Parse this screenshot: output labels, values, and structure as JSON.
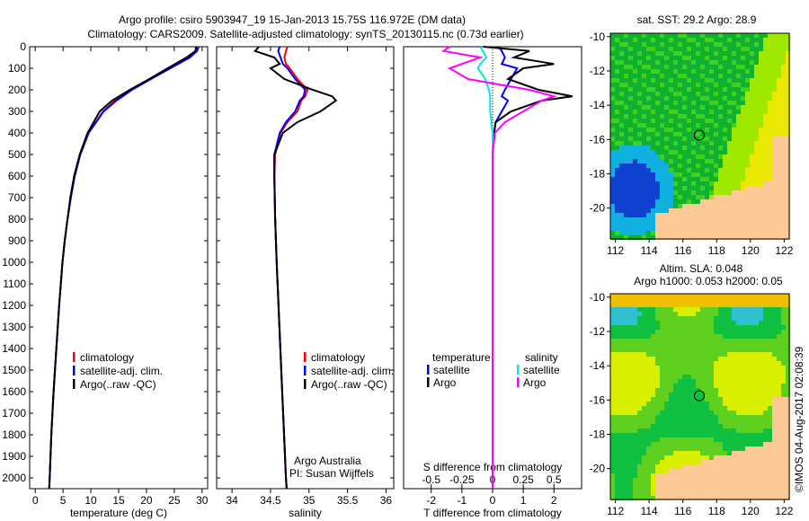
{
  "title": {
    "line1": "Argo profile: csiro 5903947_19 15-Jan-2013 15.75S 116.972E (DM data)",
    "line2": "Climatology: CARS2009. Satellite-adjusted climatology: synTS_20130115.nc (0.73d earlier)"
  },
  "colors": {
    "climatology": "#ff0000",
    "satellite": "#0000ff",
    "argo": "#000000",
    "sal_satellite": "#00e5ee",
    "sal_argo": "#ff00ff",
    "land": "#fcc996"
  },
  "chart_data": [
    {
      "type": "line",
      "name": "temperature",
      "xlabel": "temperature (deg C)",
      "xlim": [
        -1,
        31
      ],
      "ylim": [
        2050,
        0
      ],
      "xticks": [
        "0",
        "5",
        "10",
        "15",
        "20",
        "25",
        "30"
      ],
      "xtick_values": [
        0,
        5,
        10,
        15,
        20,
        25,
        30
      ],
      "yticks": [
        "0",
        "100",
        "200",
        "300",
        "400",
        "500",
        "600",
        "700",
        "800",
        "900",
        "1000",
        "1100",
        "1200",
        "1300",
        "1400",
        "1500",
        "1600",
        "1700",
        "1800",
        "1900",
        "2000"
      ],
      "depth": [
        0,
        20,
        50,
        100,
        150,
        200,
        250,
        300,
        400,
        500,
        600,
        700,
        800,
        900,
        1000,
        1200,
        1400,
        1600,
        1800,
        2000,
        2050
      ],
      "series": [
        {
          "name": "climatology",
          "values": [
            29.2,
            29,
            27.6,
            24.2,
            20.6,
            17.2,
            14.3,
            12.2,
            9.6,
            8.1,
            7.1,
            6.4,
            5.8,
            5.3,
            4.9,
            4.3,
            3.8,
            3.3,
            2.9,
            2.6,
            2.5
          ]
        },
        {
          "name": "satellite-adj. clim.",
          "values": [
            29.4,
            29.1,
            27.8,
            24.3,
            20.8,
            17.4,
            14.6,
            12.3,
            9.6,
            8.1,
            7.1,
            6.4,
            5.8,
            5.3,
            4.9,
            4.3,
            3.8,
            3.3,
            2.9,
            2.6,
            2.5
          ]
        },
        {
          "name": "Argo(..raw -QC)",
          "values": [
            28.9,
            28.8,
            27.2,
            23.8,
            20.5,
            17.0,
            13.8,
            11.6,
            9.4,
            8.0,
            7.0,
            6.3,
            5.8,
            5.3,
            4.9,
            4.3,
            3.8,
            3.3,
            2.9,
            2.6,
            2.5
          ]
        }
      ],
      "legend": [
        "climatology",
        "satellite-adj. clim.",
        "Argo(..raw -QC)"
      ]
    },
    {
      "type": "line",
      "name": "salinity",
      "xlabel": "salinity",
      "xlim": [
        33.8,
        36.1
      ],
      "ylim": [
        2050,
        0
      ],
      "xticks": [
        "34",
        "34.5",
        "35",
        "35.5",
        "36"
      ],
      "xtick_values": [
        34,
        34.5,
        35,
        35.5,
        36
      ],
      "depth": [
        0,
        20,
        50,
        80,
        100,
        150,
        200,
        230,
        250,
        300,
        350,
        400,
        500,
        600,
        800,
        1000,
        1500,
        2000,
        2050
      ],
      "series": [
        {
          "name": "climatology",
          "values": [
            34.72,
            34.7,
            34.68,
            34.7,
            34.75,
            34.85,
            34.98,
            34.95,
            34.9,
            34.85,
            34.72,
            34.63,
            34.56,
            34.55,
            34.56,
            34.58,
            34.64,
            34.7,
            34.71
          ]
        },
        {
          "name": "satellite-adj. clim.",
          "values": [
            34.62,
            34.6,
            34.63,
            34.66,
            34.72,
            34.82,
            34.95,
            34.93,
            34.88,
            34.82,
            34.7,
            34.62,
            34.55,
            34.55,
            34.56,
            34.58,
            34.64,
            34.7,
            34.71
          ]
        },
        {
          "name": "Argo(..raw -QC)",
          "values": [
            34.35,
            34.3,
            34.55,
            34.62,
            34.5,
            34.68,
            35.05,
            35.3,
            35.35,
            35.15,
            34.85,
            34.66,
            34.55,
            34.55,
            34.56,
            34.58,
            34.64,
            34.7,
            34.71
          ]
        }
      ],
      "legend": [
        "climatology",
        "satellite-adj. clim.",
        "Argo(..raw -QC)"
      ],
      "credit": [
        "Argo Australia",
        "PI: Susan Wijffels"
      ]
    },
    {
      "type": "line",
      "name": "difference",
      "xlabel": "T difference from climatology",
      "x2label": "S difference from climatology",
      "xlim": [
        -2.9,
        2.9
      ],
      "ylim": [
        2050,
        0
      ],
      "xticks": [
        "-2",
        "-1",
        "0",
        "1",
        "2"
      ],
      "xtick_values": [
        -2,
        -1,
        0,
        1,
        2
      ],
      "x2ticks": [
        "-0.5",
        "-0.25",
        "0",
        "0.25",
        "0.5"
      ],
      "x2tick_values": [
        -0.5,
        -0.25,
        0,
        0.25,
        0.5
      ],
      "depth": [
        0,
        20,
        50,
        80,
        100,
        150,
        200,
        230,
        250,
        300,
        350,
        400,
        500,
        600,
        800,
        1000,
        1500,
        2000,
        2050
      ],
      "series": [
        {
          "name": "temperature satellite",
          "values": [
            0.2,
            0.3,
            0.4,
            0.3,
            0.8,
            0.6,
            0.4,
            0.3,
            0.5,
            0.3,
            0.1,
            0.05,
            0,
            0,
            0,
            0,
            0,
            0,
            0
          ]
        },
        {
          "name": "temperature Argo",
          "values": [
            -0.3,
            1.2,
            0.7,
            2.0,
            1.0,
            0.5,
            1.5,
            2.6,
            1.6,
            0.6,
            0.1,
            0.05,
            0,
            0,
            0,
            0,
            0,
            0,
            0
          ]
        },
        {
          "name": "salinity satellite",
          "values": [
            -0.1,
            -0.08,
            -0.05,
            -0.1,
            -0.12,
            -0.06,
            -0.03,
            -0.02,
            -0.02,
            -0.02,
            -0.01,
            0,
            0,
            0,
            0,
            0,
            0,
            0,
            0
          ]
        },
        {
          "name": "salinity Argo",
          "values": [
            -0.35,
            -0.4,
            -0.1,
            -0.25,
            -0.35,
            -0.2,
            0.3,
            0.5,
            0.4,
            0.25,
            0.1,
            0.02,
            0,
            0,
            0,
            0,
            0,
            0,
            0
          ]
        }
      ],
      "legend_temperature": {
        "title": "temperature",
        "items": [
          "satellite",
          "Argo"
        ]
      },
      "legend_salinity": {
        "title": "salinity",
        "items": [
          "satellite",
          "Argo"
        ]
      }
    },
    {
      "type": "heatmap",
      "name": "sst-map",
      "title": "sat. SST: 29.2 Argo: 28.9",
      "xlim": [
        111.7,
        122.3
      ],
      "ylim": [
        -21.8,
        -9.8
      ],
      "xticks": [
        "112",
        "114",
        "116",
        "118",
        "120",
        "122"
      ],
      "yticks": [
        "-10",
        "-12",
        "-14",
        "-16",
        "-18",
        "-20"
      ],
      "marker": {
        "lon": 116.972,
        "lat": -15.75
      }
    },
    {
      "type": "heatmap",
      "name": "sla-map",
      "title": "Altim. SLA: 0.048",
      "subtitle": "Argo h1000: 0.053 h2000: 0.05",
      "xlim": [
        111.7,
        122.3
      ],
      "ylim": [
        -21.8,
        -9.8
      ],
      "xticks": [
        "112",
        "114",
        "116",
        "118",
        "120",
        "122"
      ],
      "yticks": [
        "-10",
        "-12",
        "-14",
        "-16",
        "-18",
        "-20"
      ],
      "marker": {
        "lon": 116.972,
        "lat": -15.75
      }
    }
  ],
  "footer": {
    "credit": "©IMOS 04-Aug-2017 02:08:39"
  }
}
